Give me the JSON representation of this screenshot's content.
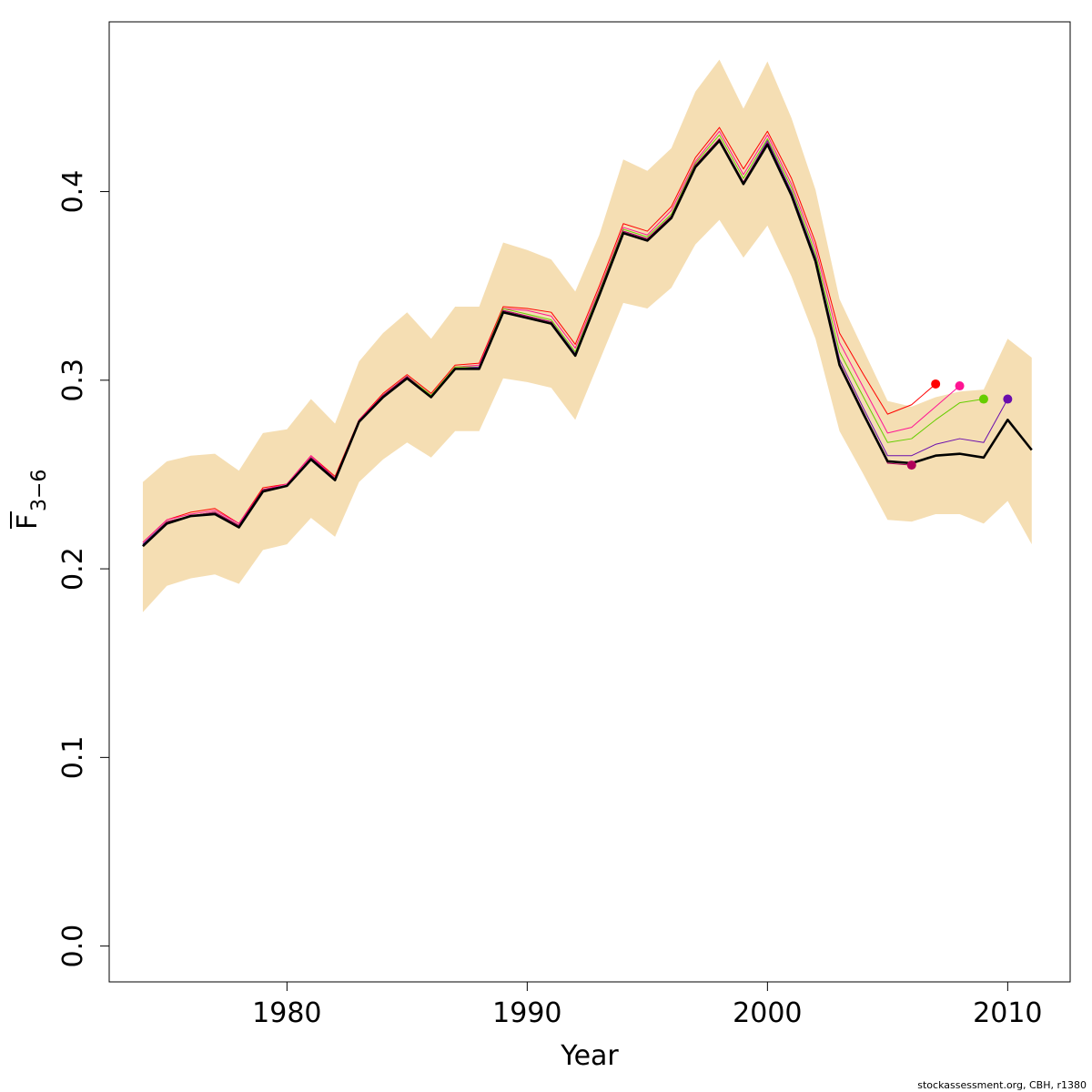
{
  "chart_data": {
    "type": "line",
    "xlabel": "Year",
    "ylabel_main": "F",
    "ylabel_sub": "3−6",
    "xlim": [
      1972.6,
      2012.6
    ],
    "ylim": [
      -0.019,
      0.49
    ],
    "x_ticks": [
      1980,
      1990,
      2000,
      2010
    ],
    "x_tick_labels": [
      "1980",
      "1990",
      "2000",
      "2010"
    ],
    "y_ticks": [
      0.0,
      0.1,
      0.2,
      0.3,
      0.4
    ],
    "y_tick_labels": [
      "0.0",
      "0.1",
      "0.2",
      "0.3",
      "0.4"
    ],
    "band": {
      "color": "#f5deb3",
      "x": [
        1974,
        1975,
        1976,
        1977,
        1978,
        1979,
        1980,
        1981,
        1982,
        1983,
        1984,
        1985,
        1986,
        1987,
        1988,
        1989,
        1990,
        1991,
        1992,
        1993,
        1994,
        1995,
        1996,
        1997,
        1998,
        1999,
        2000,
        2001,
        2002,
        2003,
        2004,
        2005,
        2006,
        2007,
        2008,
        2009,
        2010,
        2011
      ],
      "lower": [
        0.177,
        0.191,
        0.195,
        0.197,
        0.192,
        0.21,
        0.213,
        0.227,
        0.217,
        0.246,
        0.258,
        0.267,
        0.259,
        0.273,
        0.273,
        0.301,
        0.299,
        0.296,
        0.279,
        0.31,
        0.341,
        0.338,
        0.349,
        0.372,
        0.385,
        0.365,
        0.382,
        0.355,
        0.322,
        0.273,
        0.25,
        0.226,
        0.225,
        0.229,
        0.229,
        0.224,
        0.236,
        0.213
      ],
      "upper": [
        0.246,
        0.257,
        0.26,
        0.261,
        0.252,
        0.272,
        0.274,
        0.29,
        0.277,
        0.31,
        0.325,
        0.336,
        0.322,
        0.339,
        0.339,
        0.373,
        0.369,
        0.364,
        0.347,
        0.377,
        0.417,
        0.411,
        0.423,
        0.453,
        0.47,
        0.444,
        0.469,
        0.439,
        0.401,
        0.343,
        0.316,
        0.289,
        0.286,
        0.291,
        0.294,
        0.295,
        0.322,
        0.312
      ]
    },
    "series": [
      {
        "color": "#ff0000",
        "width": 1,
        "x": [
          1974,
          1975,
          1976,
          1977,
          1978,
          1979,
          1980,
          1981,
          1982,
          1983,
          1984,
          1985,
          1986,
          1987,
          1988,
          1989,
          1990,
          1991,
          1992,
          1993,
          1994,
          1995,
          1996,
          1997,
          1998,
          1999,
          2000,
          2001,
          2002,
          2003,
          2004,
          2005,
          2006,
          2007
        ],
        "y": [
          0.214,
          0.226,
          0.23,
          0.232,
          0.224,
          0.243,
          0.245,
          0.26,
          0.249,
          0.279,
          0.293,
          0.303,
          0.293,
          0.308,
          0.309,
          0.339,
          0.338,
          0.336,
          0.319,
          0.35,
          0.383,
          0.379,
          0.392,
          0.418,
          0.434,
          0.412,
          0.432,
          0.407,
          0.373,
          0.325,
          0.303,
          0.282,
          0.287,
          0.298
        ],
        "end_point": true
      },
      {
        "color": "#ff1493",
        "width": 1,
        "x": [
          1974,
          1975,
          1976,
          1977,
          1978,
          1979,
          1980,
          1981,
          1982,
          1983,
          1984,
          1985,
          1986,
          1987,
          1988,
          1989,
          1990,
          1991,
          1992,
          1993,
          1994,
          1995,
          1996,
          1997,
          1998,
          1999,
          2000,
          2001,
          2002,
          2003,
          2004,
          2005,
          2006,
          2007,
          2008
        ],
        "y": [
          0.214,
          0.226,
          0.229,
          0.231,
          0.224,
          0.242,
          0.245,
          0.26,
          0.248,
          0.279,
          0.292,
          0.302,
          0.292,
          0.307,
          0.308,
          0.338,
          0.337,
          0.334,
          0.317,
          0.348,
          0.381,
          0.377,
          0.39,
          0.416,
          0.432,
          0.409,
          0.43,
          0.404,
          0.37,
          0.32,
          0.296,
          0.272,
          0.275,
          0.286,
          0.297
        ],
        "end_point": true
      },
      {
        "color": "#66cd00",
        "width": 1,
        "x": [
          1974,
          1975,
          1976,
          1977,
          1978,
          1979,
          1980,
          1981,
          1982,
          1983,
          1984,
          1985,
          1986,
          1987,
          1988,
          1989,
          1990,
          1991,
          1992,
          1993,
          1994,
          1995,
          1996,
          1997,
          1998,
          1999,
          2000,
          2001,
          2002,
          2003,
          2004,
          2005,
          2006,
          2007,
          2008,
          2009
        ],
        "y": [
          0.213,
          0.225,
          0.228,
          0.23,
          0.223,
          0.242,
          0.244,
          0.259,
          0.248,
          0.278,
          0.292,
          0.302,
          0.292,
          0.307,
          0.307,
          0.338,
          0.335,
          0.332,
          0.315,
          0.347,
          0.38,
          0.376,
          0.388,
          0.415,
          0.43,
          0.407,
          0.428,
          0.402,
          0.367,
          0.315,
          0.291,
          0.267,
          0.269,
          0.279,
          0.288,
          0.29
        ],
        "end_point": true
      },
      {
        "color": "#6a0dad",
        "width": 1,
        "x": [
          1974,
          1975,
          1976,
          1977,
          1978,
          1979,
          1980,
          1981,
          1982,
          1983,
          1984,
          1985,
          1986,
          1987,
          1988,
          1989,
          1990,
          1991,
          1992,
          1993,
          1994,
          1995,
          1996,
          1997,
          1998,
          1999,
          2000,
          2001,
          2002,
          2003,
          2004,
          2005,
          2006,
          2007,
          2008,
          2009,
          2010
        ],
        "y": [
          0.213,
          0.225,
          0.228,
          0.23,
          0.223,
          0.242,
          0.244,
          0.259,
          0.248,
          0.278,
          0.292,
          0.302,
          0.291,
          0.306,
          0.307,
          0.337,
          0.334,
          0.331,
          0.314,
          0.346,
          0.379,
          0.375,
          0.387,
          0.414,
          0.428,
          0.405,
          0.427,
          0.4,
          0.365,
          0.311,
          0.285,
          0.26,
          0.26,
          0.266,
          0.269,
          0.267,
          0.29
        ],
        "end_point": true
      },
      {
        "color": "#b0005a",
        "width": 1,
        "x": [
          1974,
          1975,
          1976,
          1977,
          1978,
          1979,
          1980,
          1981,
          1982,
          1983,
          1984,
          1985,
          1986,
          1987,
          1988,
          1989,
          1990,
          1991,
          1992,
          1993,
          1994,
          1995,
          1996,
          1997,
          1998,
          1999,
          2000,
          2001,
          2002,
          2003,
          2004,
          2005,
          2006
        ],
        "y": [
          0.212,
          0.225,
          0.228,
          0.23,
          0.223,
          0.242,
          0.244,
          0.259,
          0.248,
          0.278,
          0.292,
          0.302,
          0.291,
          0.306,
          0.306,
          0.337,
          0.334,
          0.331,
          0.313,
          0.346,
          0.379,
          0.375,
          0.387,
          0.414,
          0.428,
          0.405,
          0.426,
          0.399,
          0.364,
          0.309,
          0.283,
          0.256,
          0.255
        ],
        "end_point": true
      },
      {
        "color": "#000000",
        "width": 2.6,
        "x": [
          1974,
          1975,
          1976,
          1977,
          1978,
          1979,
          1980,
          1981,
          1982,
          1983,
          1984,
          1985,
          1986,
          1987,
          1988,
          1989,
          1990,
          1991,
          1992,
          1993,
          1994,
          1995,
          1996,
          1997,
          1998,
          1999,
          2000,
          2001,
          2002,
          2003,
          2004,
          2005,
          2006,
          2007,
          2008,
          2009,
          2010,
          2011
        ],
        "y": [
          0.212,
          0.224,
          0.228,
          0.229,
          0.222,
          0.241,
          0.244,
          0.258,
          0.247,
          0.278,
          0.291,
          0.301,
          0.291,
          0.306,
          0.306,
          0.336,
          0.333,
          0.33,
          0.313,
          0.345,
          0.378,
          0.374,
          0.386,
          0.413,
          0.427,
          0.404,
          0.425,
          0.398,
          0.363,
          0.308,
          0.282,
          0.257,
          0.256,
          0.26,
          0.261,
          0.259,
          0.279,
          0.263
        ],
        "end_point": false
      }
    ]
  },
  "footer": {
    "text": "stockassessment.org, CBH, r1380"
  }
}
